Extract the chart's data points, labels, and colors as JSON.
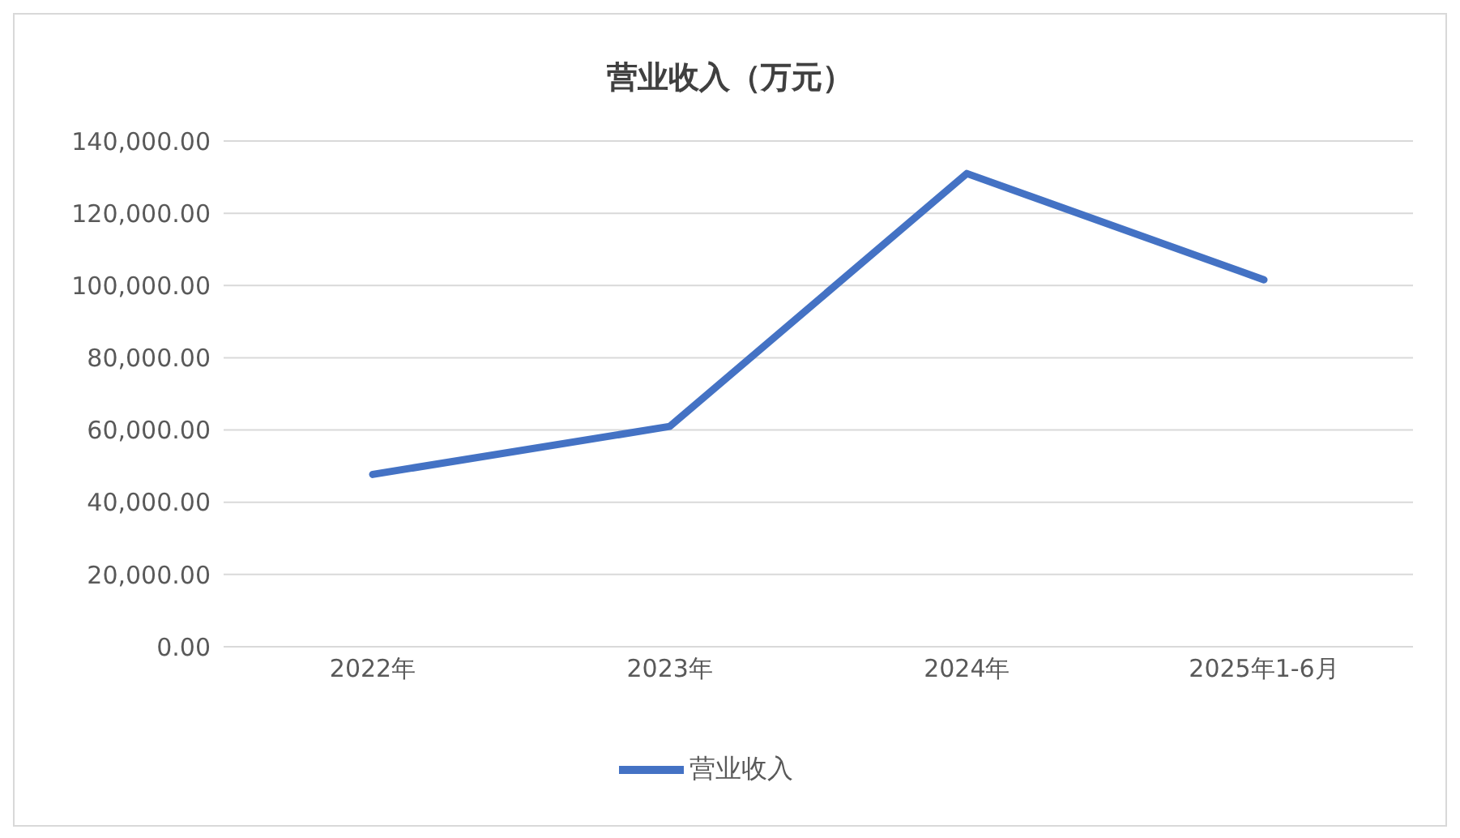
{
  "chart_data": {
    "type": "line",
    "title": "营业收入（万元）",
    "categories": [
      "2022年",
      "2023年",
      "2024年",
      "2025年1-6月"
    ],
    "series": [
      {
        "name": "营业收入",
        "color": "#4472c4",
        "values": [
          47700,
          61000,
          131000,
          101600
        ]
      }
    ],
    "ylim": [
      0,
      140000
    ],
    "yticks": [
      {
        "value": 0,
        "label": "0.00"
      },
      {
        "value": 20000,
        "label": "20,000.00"
      },
      {
        "value": 40000,
        "label": "40,000.00"
      },
      {
        "value": 60000,
        "label": "60,000.00"
      },
      {
        "value": 80000,
        "label": "80,000.00"
      },
      {
        "value": 100000,
        "label": "100,000.00"
      },
      {
        "value": 120000,
        "label": "120,000.00"
      },
      {
        "value": 140000,
        "label": "140,000.00"
      }
    ],
    "grid": "y",
    "legend": "bottom",
    "marker": "none",
    "line_style": "solid"
  }
}
